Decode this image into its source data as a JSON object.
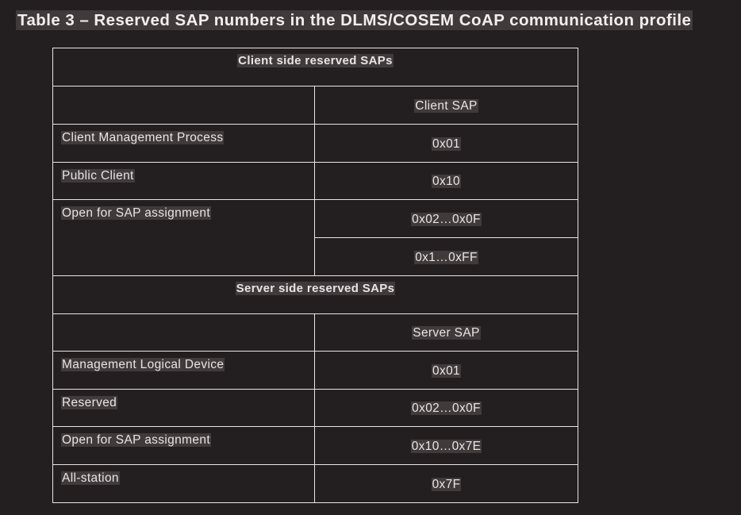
{
  "title": "Table 3 – Reserved SAP numbers in the DLMS/COSEM CoAP communication profile",
  "client_section": {
    "heading": "Client side reserved SAPs",
    "column_header": "Client SAP",
    "rows": [
      {
        "label": "Client Management Process",
        "value": "0x01"
      },
      {
        "label": "Public Client",
        "value": "0x10"
      },
      {
        "label": "Open for SAP assignment",
        "values": [
          "0x02…0x0F",
          "0x1…0xFF"
        ]
      }
    ]
  },
  "server_section": {
    "heading": "Server side reserved SAPs",
    "column_header": "Server SAP",
    "rows": [
      {
        "label": "Management Logical Device",
        "value": "0x01"
      },
      {
        "label": "Reserved",
        "value": "0x02…0x0F"
      },
      {
        "label": "Open for SAP assignment",
        "value": "0x10…0x7E"
      },
      {
        "label": "All-station",
        "value": "0x7F"
      }
    ]
  }
}
